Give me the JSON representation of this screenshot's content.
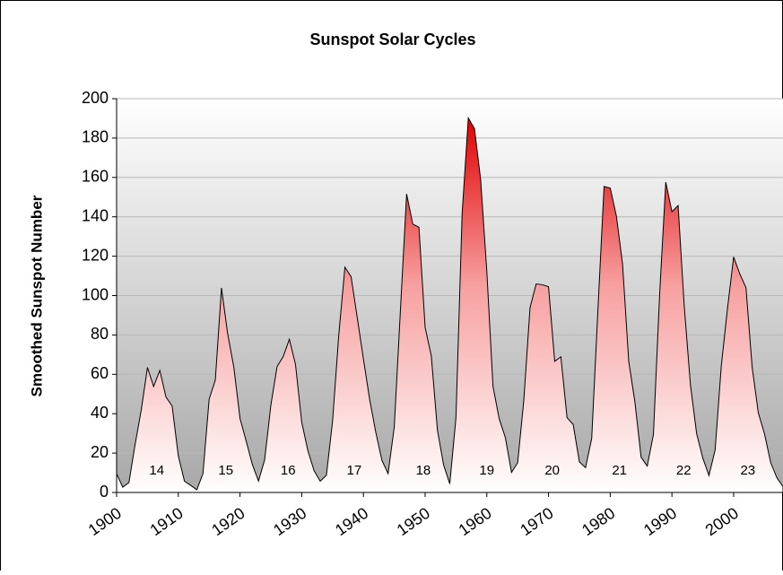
{
  "chart_data": {
    "type": "area",
    "title": "Sunspot Solar Cycles",
    "y_label": "Smoothed Sunspot Number",
    "x": [
      1900,
      1901,
      1902,
      1903,
      1904,
      1905,
      1906,
      1907,
      1908,
      1909,
      1910,
      1911,
      1912,
      1913,
      1914,
      1915,
      1916,
      1917,
      1918,
      1919,
      1920,
      1921,
      1922,
      1923,
      1924,
      1925,
      1926,
      1927,
      1928,
      1929,
      1930,
      1931,
      1932,
      1933,
      1934,
      1935,
      1936,
      1937,
      1938,
      1939,
      1940,
      1941,
      1942,
      1943,
      1944,
      1945,
      1946,
      1947,
      1948,
      1949,
      1950,
      1951,
      1952,
      1953,
      1954,
      1955,
      1956,
      1957,
      1958,
      1959,
      1960,
      1961,
      1962,
      1963,
      1964,
      1965,
      1966,
      1967,
      1968,
      1969,
      1970,
      1971,
      1972,
      1973,
      1974,
      1975,
      1976,
      1977,
      1978,
      1979,
      1980,
      1981,
      1982,
      1983,
      1984,
      1985,
      1986,
      1987,
      1988,
      1989,
      1990,
      1991,
      1992,
      1993,
      1994,
      1995,
      1996,
      1997,
      1998,
      1999,
      2000,
      2001,
      2002,
      2003,
      2004,
      2005,
      2006,
      2007,
      2008
    ],
    "series": [
      {
        "color": "#e00000",
        "values": [
          9.5,
          2.7,
          5.0,
          24.4,
          42.0,
          63.5,
          53.8,
          62.0,
          48.5,
          43.9,
          18.6,
          5.7,
          3.6,
          1.4,
          9.6,
          47.4,
          57.1,
          103.9,
          80.6,
          63.6,
          37.6,
          26.1,
          14.2,
          5.8,
          16.7,
          44.3,
          63.9,
          69.0,
          77.8,
          64.9,
          35.7,
          21.2,
          11.1,
          5.7,
          8.7,
          36.1,
          79.7,
          114.4,
          109.6,
          88.8,
          67.8,
          47.5,
          30.6,
          16.3,
          9.6,
          33.2,
          92.6,
          151.6,
          136.3,
          134.7,
          83.9,
          69.4,
          31.5,
          13.9,
          4.4,
          38.0,
          141.7,
          190.2,
          184.8,
          159.0,
          112.3,
          53.9,
          37.5,
          27.9,
          10.2,
          15.1,
          47.0,
          93.8,
          105.9,
          105.5,
          104.5,
          66.6,
          68.9,
          38.0,
          34.5,
          15.5,
          12.6,
          27.5,
          92.5,
          155.4,
          154.6,
          140.4,
          115.9,
          66.6,
          45.9,
          17.9,
          13.4,
          29.4,
          100.2,
          157.6,
          142.6,
          145.7,
          94.3,
          54.6,
          29.9,
          17.5,
          8.6,
          21.5,
          64.3,
          93.3,
          119.6,
          111.0,
          104.0,
          63.7,
          40.4,
          29.8,
          15.2,
          7.5,
          2.9
        ]
      }
    ],
    "annotations": [
      {
        "text": "14",
        "x": 1906.5,
        "y": 11
      },
      {
        "text": "15",
        "x": 1917.7,
        "y": 11
      },
      {
        "text": "16",
        "x": 1927.8,
        "y": 11
      },
      {
        "text": "17",
        "x": 1938.5,
        "y": 11
      },
      {
        "text": "18",
        "x": 1949.7,
        "y": 11
      },
      {
        "text": "19",
        "x": 1960,
        "y": 11
      },
      {
        "text": "20",
        "x": 1970.6,
        "y": 11
      },
      {
        "text": "21",
        "x": 1981.5,
        "y": 11
      },
      {
        "text": "22",
        "x": 1991.9,
        "y": 11
      },
      {
        "text": "23",
        "x": 2002.3,
        "y": 11
      }
    ],
    "xlim": [
      1900,
      2008
    ],
    "xticks": [
      1900,
      1910,
      1920,
      1930,
      1940,
      1950,
      1960,
      1970,
      1980,
      1990,
      2000
    ],
    "ylim": [
      0,
      200
    ],
    "yticks": [
      0,
      20,
      40,
      60,
      80,
      100,
      120,
      140,
      160,
      180,
      200
    ],
    "grid": true
  }
}
